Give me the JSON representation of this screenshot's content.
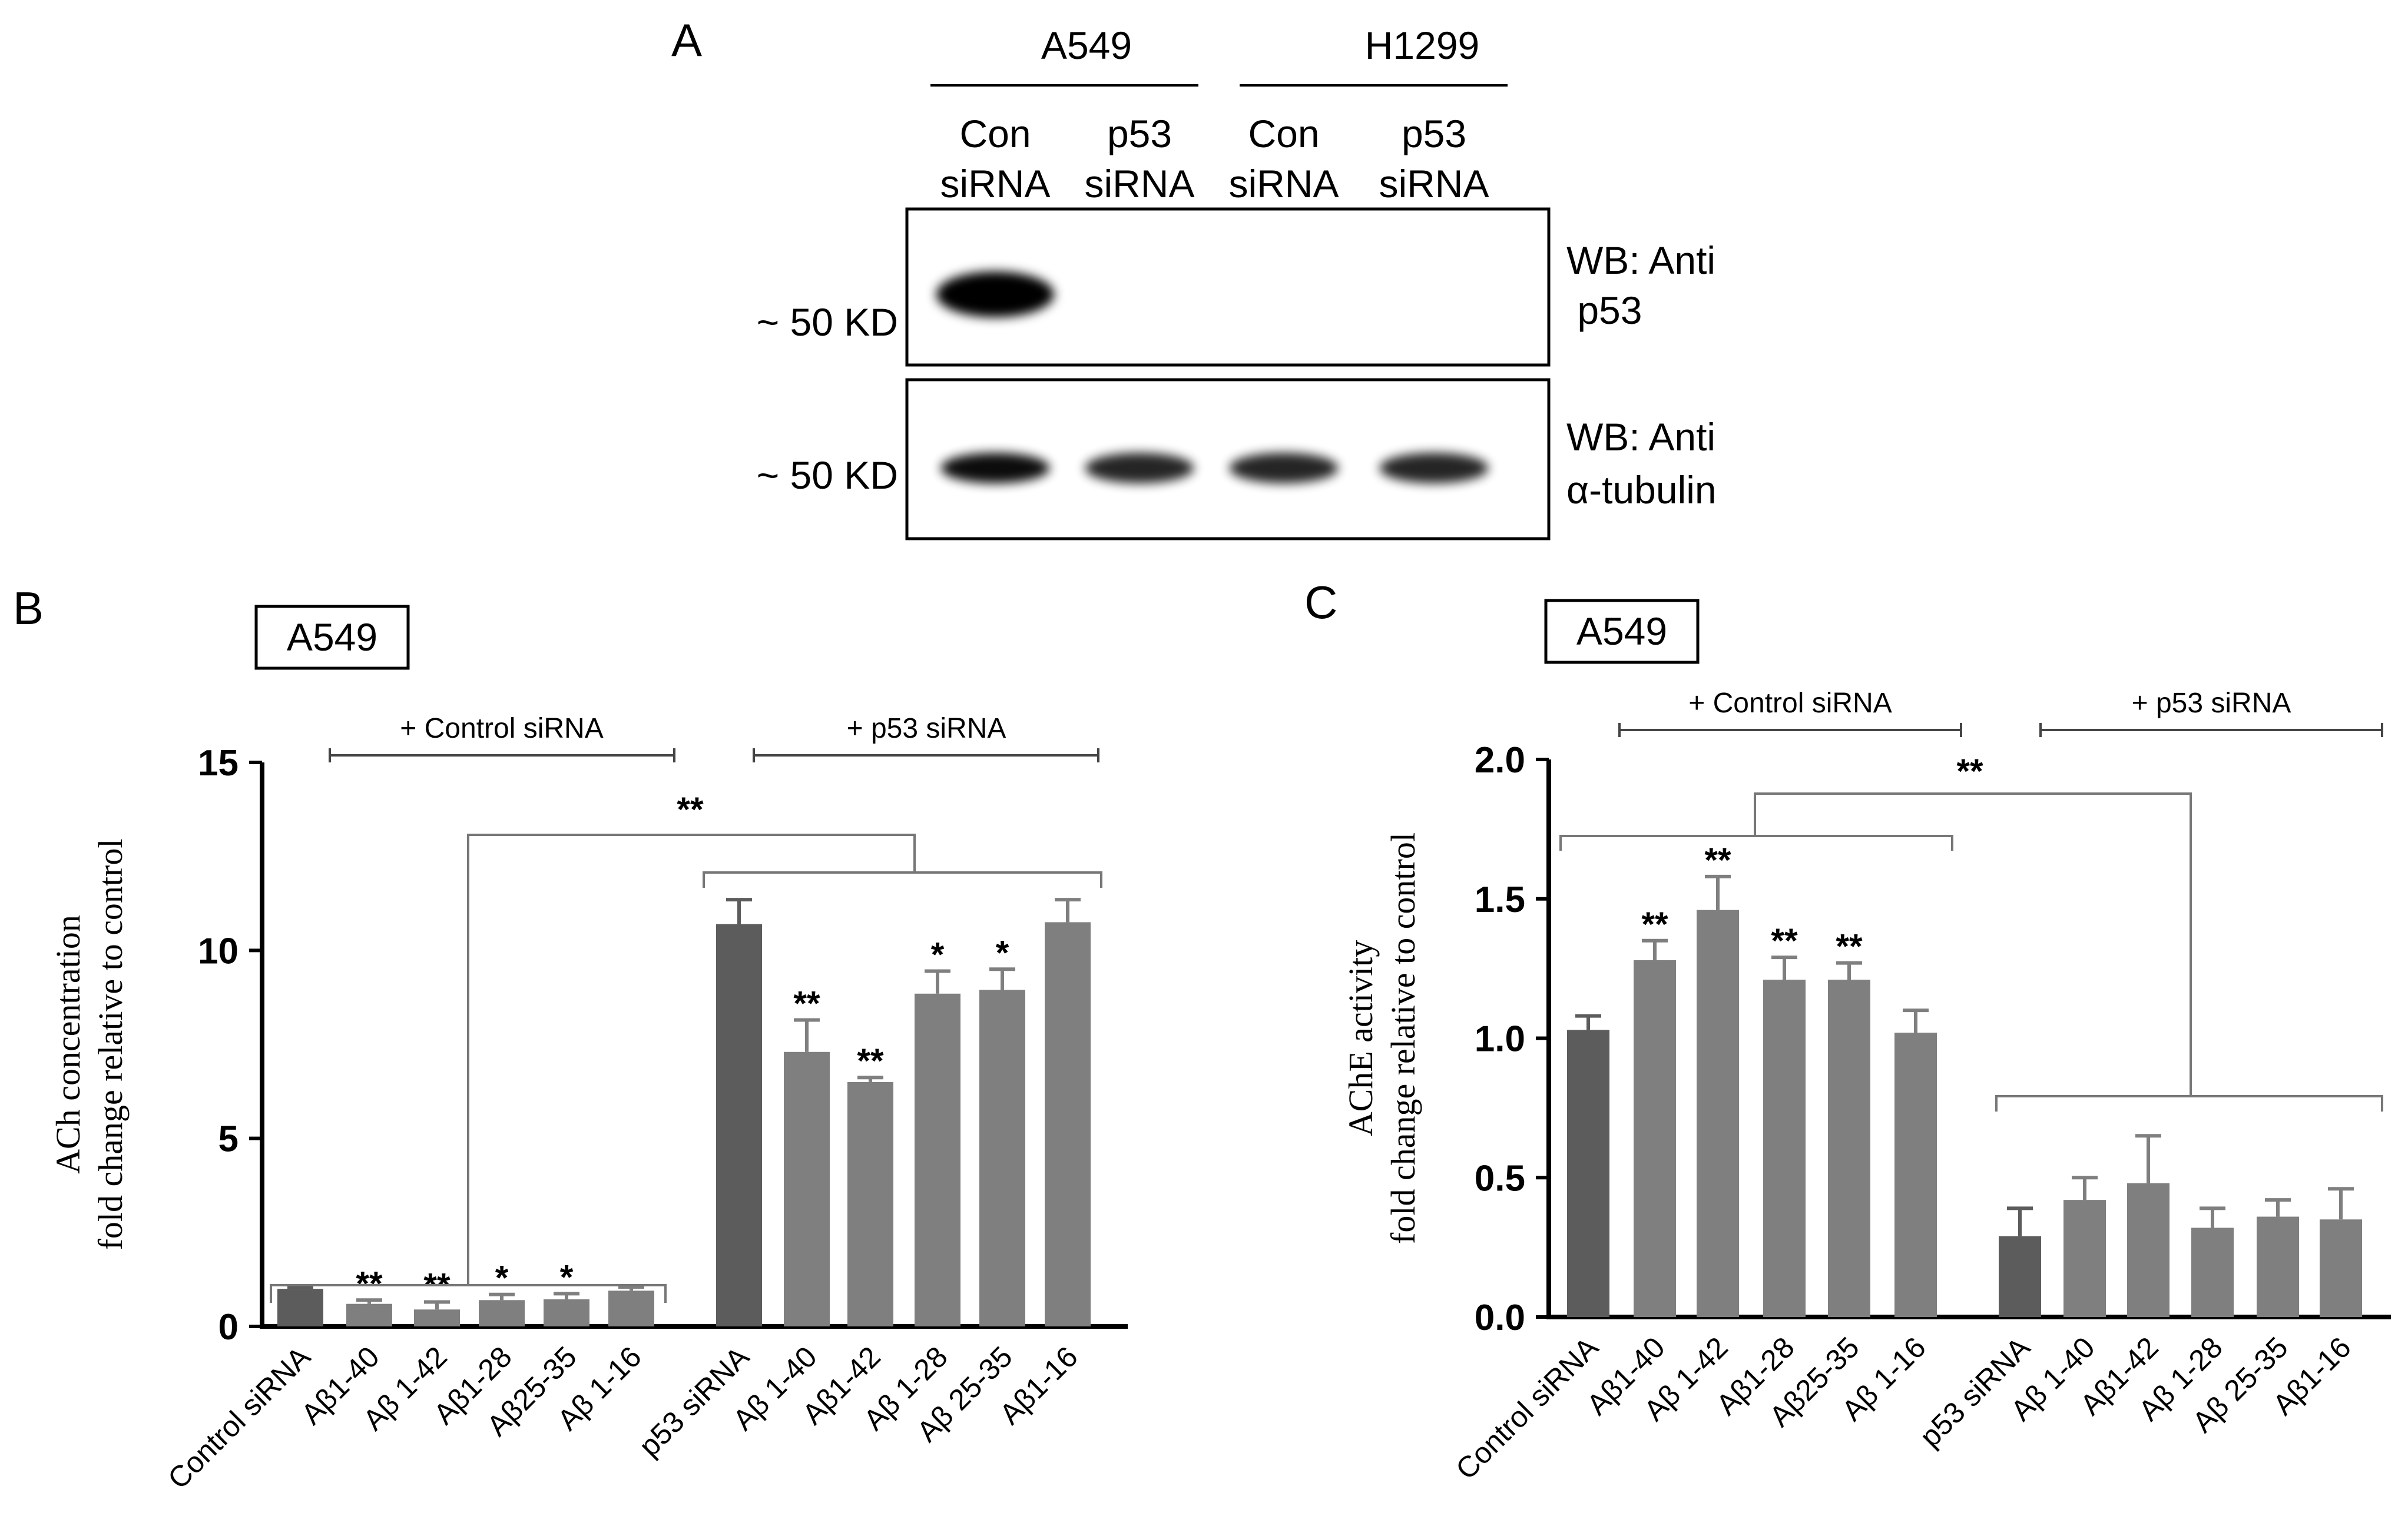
{
  "panels": {
    "a": {
      "letter": "A",
      "cell_lines": [
        {
          "name": "A549",
          "lanes": [
            {
              "l1": "Con",
              "l2": "siRNA"
            },
            {
              "l1": "p53",
              "l2": "siRNA"
            }
          ]
        },
        {
          "name": "H1299",
          "lanes": [
            {
              "l1": "Con",
              "l2": "siRNA"
            },
            {
              "l1": "p53",
              "l2": "siRNA"
            }
          ]
        }
      ],
      "blots": [
        {
          "marker": "~ 50 KD",
          "antibody_l1": "WB: Anti",
          "antibody_l2": " p53",
          "band_intensity": [
            1.0,
            0,
            0,
            0
          ]
        },
        {
          "marker": "~ 50 KD",
          "antibody_l1": "WB: Anti",
          "antibody_l2": "α-tubulin",
          "band_intensity": [
            0.95,
            0.85,
            0.85,
            0.85
          ]
        }
      ]
    },
    "b": {
      "letter": "B",
      "box_label": "A549"
    },
    "c": {
      "letter": "C",
      "box_label": "A549"
    }
  },
  "chart_data": [
    {
      "panel": "B",
      "type": "bar",
      "ylabel": "ACh concentration",
      "ylabel_line2": "fold change relative to control",
      "ylim": [
        0,
        15
      ],
      "yticks": [
        "0",
        "5",
        "10",
        "15"
      ],
      "group_labels": [
        "+ Control siRNA",
        "+ p53 siRNA"
      ],
      "comparison_label": "**",
      "categories": [
        "Control siRNA",
        "Aβ1-40",
        "Aβ 1-42",
        "Aβ1-28",
        "Aβ25-35",
        "Aβ 1-16",
        "p53 siRNA",
        "Aβ 1-40",
        "Aβ1-42",
        "Aβ 1-28",
        "Aβ 25-35",
        "Aβ1-16"
      ],
      "values": [
        1.0,
        0.6,
        0.45,
        0.7,
        0.72,
        0.95,
        10.7,
        7.3,
        6.5,
        8.85,
        8.95,
        10.75
      ],
      "errors": [
        0.05,
        0.1,
        0.2,
        0.15,
        0.15,
        0.1,
        0.65,
        0.85,
        0.12,
        0.6,
        0.55,
        0.6
      ],
      "significance": [
        "",
        "**",
        "**",
        "*",
        "*",
        "",
        "",
        "**",
        "**",
        "*",
        "*",
        ""
      ],
      "colors": [
        "#5c5c5c",
        "#7f7f7f"
      ]
    },
    {
      "panel": "C",
      "type": "bar",
      "ylabel": "AChE activity",
      "ylabel_line2": "fold change relative to control",
      "ylim": [
        0,
        2.0
      ],
      "yticks": [
        "0.0",
        "0.5",
        "1.0",
        "1.5",
        "2.0"
      ],
      "group_labels": [
        "+ Control siRNA",
        "+ p53 siRNA"
      ],
      "comparison_label": "**",
      "categories": [
        "Control siRNA",
        "Aβ1-40",
        "Aβ 1-42",
        "Aβ1-28",
        "Aβ25-35",
        "Aβ 1-16",
        "p53 siRNA",
        "Aβ 1-40",
        "Aβ1-42",
        "Aβ 1-28",
        "Aβ 25-35",
        "Aβ1-16"
      ],
      "values": [
        1.03,
        1.28,
        1.46,
        1.21,
        1.21,
        1.02,
        0.29,
        0.42,
        0.48,
        0.32,
        0.36,
        0.35
      ],
      "errors": [
        0.05,
        0.07,
        0.12,
        0.08,
        0.06,
        0.08,
        0.1,
        0.08,
        0.17,
        0.07,
        0.06,
        0.11
      ],
      "significance": [
        "",
        "**",
        "**",
        "**",
        "**",
        "",
        "",
        "",
        "",
        "",
        "",
        ""
      ],
      "colors": [
        "#5c5c5c",
        "#7f7f7f"
      ]
    }
  ]
}
